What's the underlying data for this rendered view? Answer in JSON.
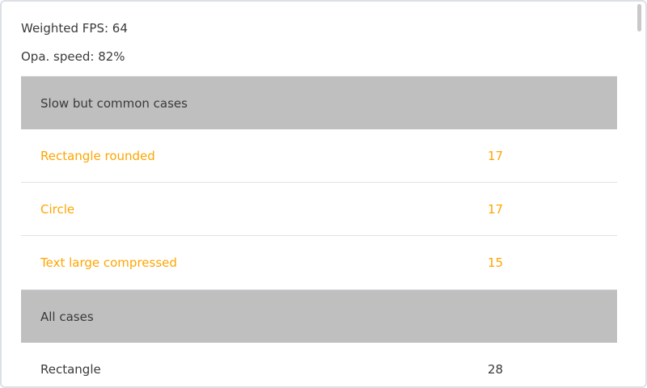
{
  "summary": {
    "weighted_fps": "Weighted FPS: 64",
    "opa_speed": "Opa. speed: 82%"
  },
  "colors": {
    "slow_case": "#ffa500",
    "header_bg": "#bfbfbf"
  },
  "sections": [
    {
      "title": "Slow but common cases",
      "rows": [
        {
          "name": "Rectangle rounded",
          "value": "17"
        },
        {
          "name": "Circle",
          "value": "17"
        },
        {
          "name": "Text large compressed",
          "value": "15"
        }
      ]
    },
    {
      "title": "All cases",
      "rows": [
        {
          "name": "Rectangle",
          "value": "28"
        }
      ]
    }
  ]
}
